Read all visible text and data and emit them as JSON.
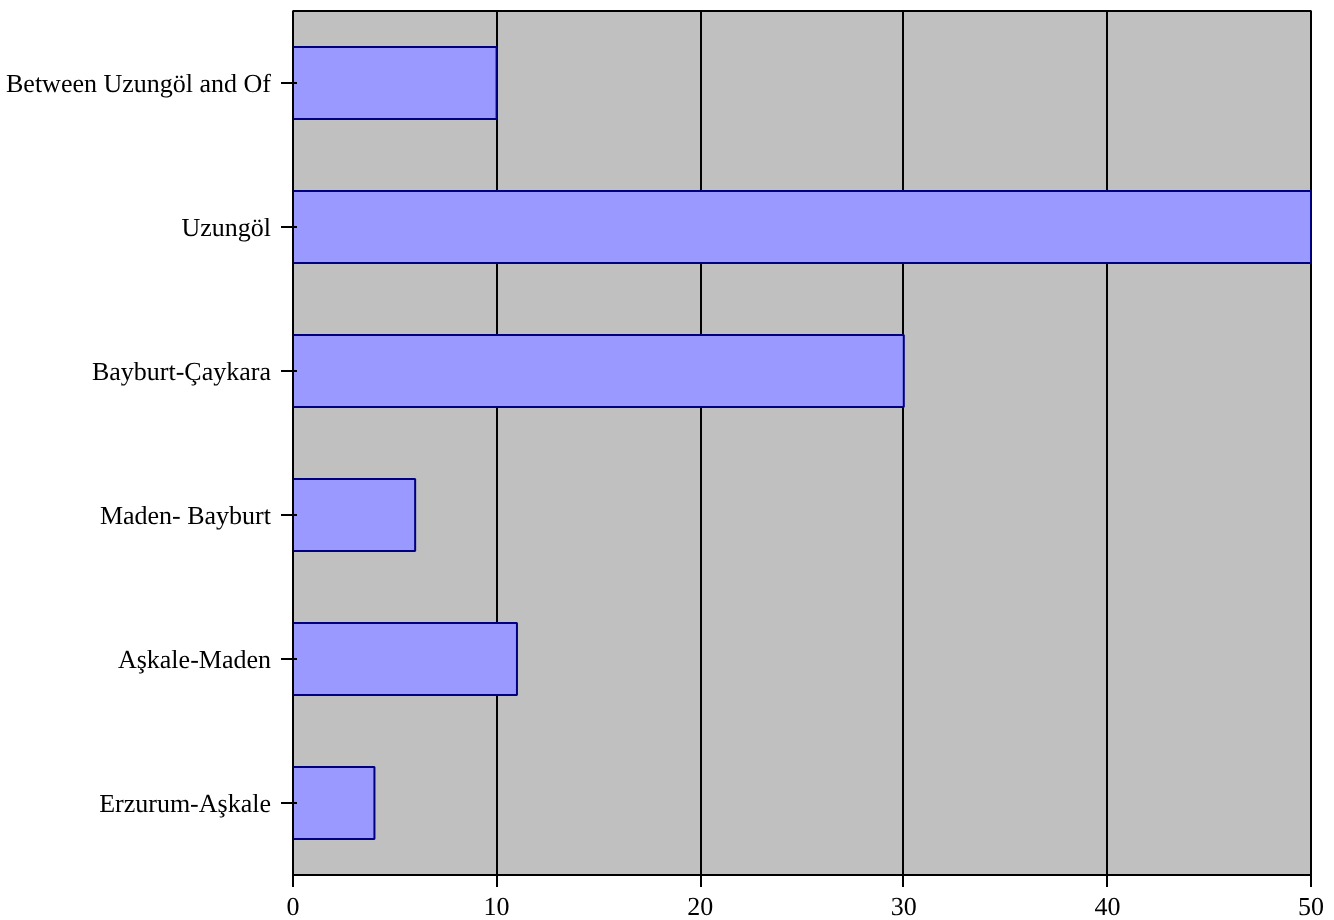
{
  "chart_data": {
    "type": "bar",
    "orientation": "horizontal",
    "categories": [
      "Between Uzungöl and Of",
      "Uzungöl",
      "Bayburt-Çaykara",
      "Maden- Bayburt",
      "Aşkale-Maden",
      "Erzurum-Aşkale"
    ],
    "values": [
      10,
      50,
      30,
      6,
      11,
      4
    ],
    "color": "#9999ff",
    "xlim": [
      0,
      50
    ],
    "xticks": [
      0,
      10,
      20,
      30,
      40,
      50
    ],
    "grid": "x"
  }
}
